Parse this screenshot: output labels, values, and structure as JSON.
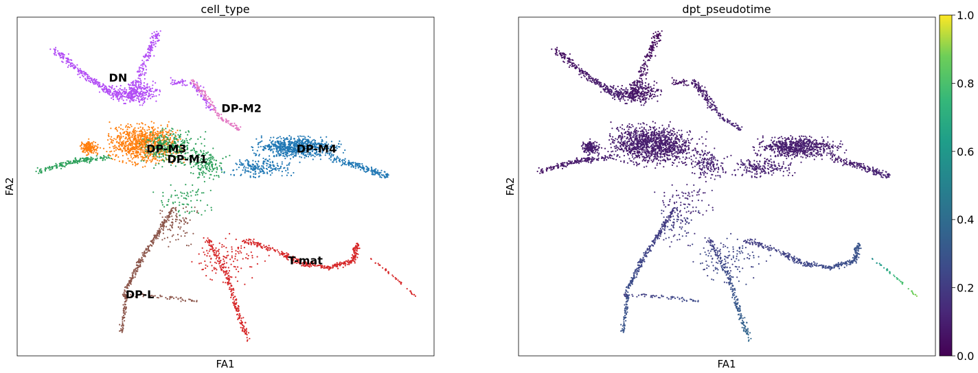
{
  "chart_data": [
    {
      "type": "scatter",
      "title": "cell_type",
      "xlabel": "FA1",
      "ylabel": "FA2",
      "grid": false,
      "legend": "on data",
      "categories": [
        {
          "name": "DN",
          "color": "#b24df5",
          "label_pos": [
            0.22,
            0.19
          ]
        },
        {
          "name": "DP-M2",
          "color": "#e377c2",
          "label_pos": [
            0.49,
            0.28
          ]
        },
        {
          "name": "DP-M3",
          "color": "#ff7f0e",
          "label_pos": [
            0.31,
            0.4
          ]
        },
        {
          "name": "DP-M1",
          "color": "#2ca05a",
          "label_pos": [
            0.36,
            0.43
          ]
        },
        {
          "name": "DP-M4",
          "color": "#1f77b4",
          "label_pos": [
            0.67,
            0.4
          ]
        },
        {
          "name": "T-mat",
          "color": "#d62728",
          "label_pos": [
            0.65,
            0.73
          ]
        },
        {
          "name": "DP-L",
          "color": "#8c564b",
          "label_pos": [
            0.26,
            0.83
          ]
        }
      ]
    },
    {
      "type": "scatter",
      "title": "dpt_pseudotime",
      "xlabel": "FA1",
      "ylabel": "FA2",
      "grid": false,
      "colormap": "viridis",
      "colorbar": {
        "range": [
          0.0,
          1.0
        ],
        "ticks": [
          "0.0",
          "0.2",
          "0.4",
          "0.6",
          "0.8",
          "1.0"
        ]
      }
    }
  ]
}
